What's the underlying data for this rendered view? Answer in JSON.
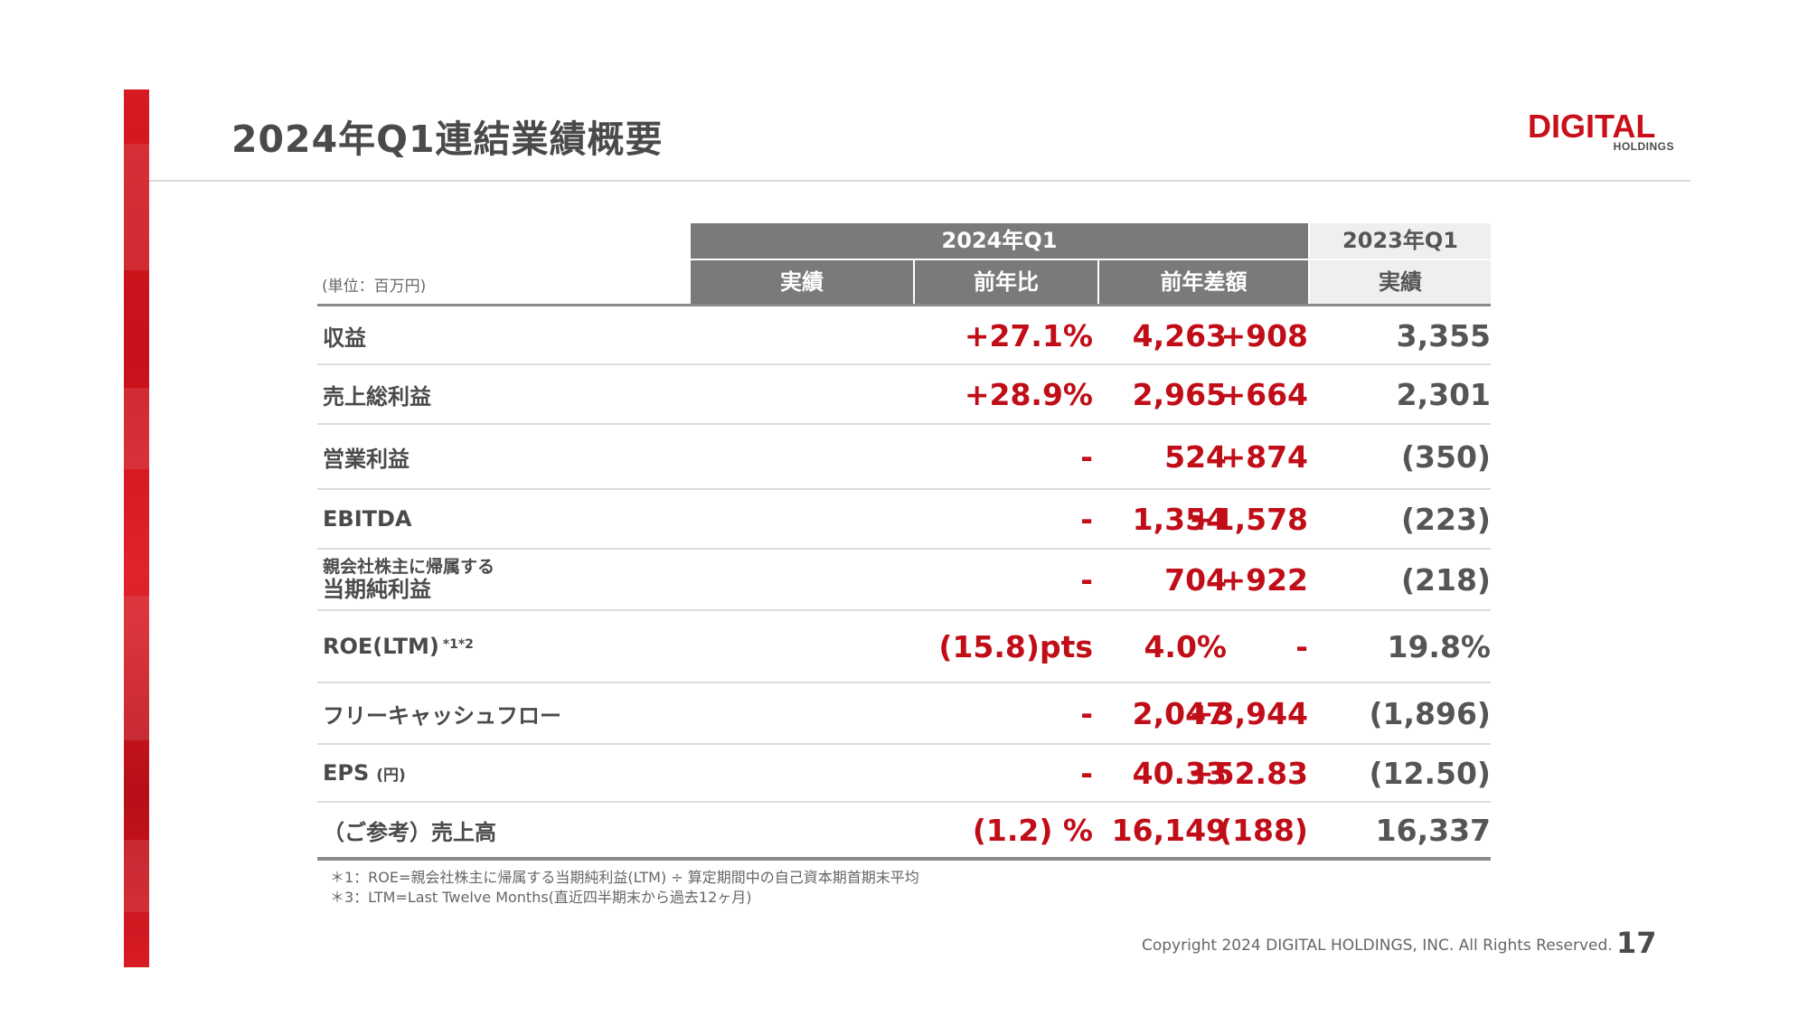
{
  "slide": {
    "title": "2024年Q1連結業績概要",
    "logo_main": "DIGITAL",
    "logo_sub": "HOLDINGS",
    "unit_note": "(単位：百万円)",
    "copyright": "Copyright 2024 DIGITAL HOLDINGS, INC. All Rights Reserved.",
    "page_number": "17",
    "accent_color": "#c8101a"
  },
  "table": {
    "group_current": "2024年Q1",
    "group_previous": "2023年Q1",
    "col_actual": "実績",
    "col_yoy": "前年比",
    "col_diff": "前年差額",
    "col_prev_actual": "実績",
    "rows": [
      {
        "label": "収益",
        "actual": "4,263",
        "yoy": "+27.1%",
        "diff": "+908",
        "prev": "3,355"
      },
      {
        "label": "売上総利益",
        "actual": "2,965",
        "yoy": "+28.9%",
        "diff": "+664",
        "prev": "2,301"
      },
      {
        "label": "営業利益",
        "actual": "524",
        "yoy": "-",
        "diff": "+874",
        "prev": "(350)"
      },
      {
        "label": "EBITDA",
        "actual": "1,354",
        "yoy": "-",
        "diff": "+1,578",
        "prev": "(223)"
      },
      {
        "label_line1": "親会社株主に帰属する",
        "label_line2": "当期純利益",
        "actual": "704",
        "yoy": "-",
        "diff": "+922",
        "prev": "(218)"
      },
      {
        "label": "ROE(LTM)",
        "label_sup": "*1*2",
        "actual": "4.0%",
        "yoy": "(15.8)pts",
        "diff": "-",
        "prev": "19.8%"
      },
      {
        "label": "フリーキャッシュフロー",
        "actual": "2,047",
        "yoy": "-",
        "diff": "+3,944",
        "prev": "(1,896)"
      },
      {
        "label": "EPS",
        "label_unit": "(円)",
        "actual": "40.33",
        "yoy": "-",
        "diff": "+52.83",
        "prev": "(12.50)"
      },
      {
        "label": "（ご参考）売上高",
        "actual": "16,149",
        "yoy": "(1.2) %",
        "diff": "(188)",
        "prev": "16,337"
      }
    ]
  },
  "footnotes": [
    "＊1：ROE=親会社株主に帰属する当期純利益(LTM) ÷ 算定期間中の自己資本期首期末平均",
    "＊3：LTM=Last Twelve Months(直近四半期末から過去12ヶ月)"
  ]
}
